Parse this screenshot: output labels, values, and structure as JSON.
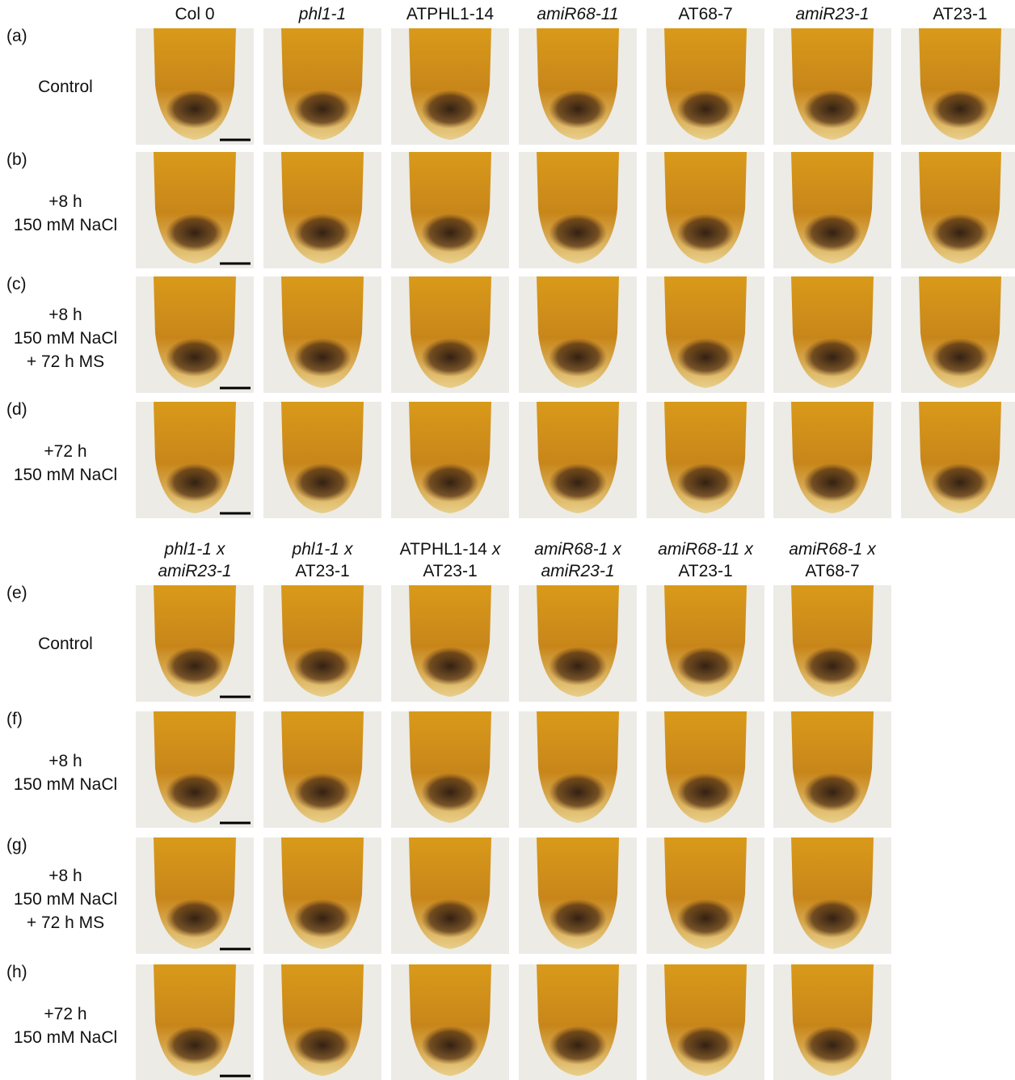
{
  "figure": {
    "top": {
      "columns": [
        [
          [
            {
              "text": "Col 0",
              "italic": false
            }
          ]
        ],
        [
          [
            {
              "text": "phl1-1",
              "italic": true
            }
          ]
        ],
        [
          [
            {
              "text": "ATPHL1-14",
              "italic": false
            }
          ]
        ],
        [
          [
            {
              "text": "amiR68-11",
              "italic": true
            }
          ]
        ],
        [
          [
            {
              "text": "AT68-7",
              "italic": false
            }
          ]
        ],
        [
          [
            {
              "text": "amiR23-1",
              "italic": true
            }
          ]
        ],
        [
          [
            {
              "text": "AT23-1",
              "italic": false
            }
          ]
        ]
      ],
      "rows": [
        {
          "label": "(a)",
          "lines": [
            "Control"
          ]
        },
        {
          "label": "(b)",
          "lines": [
            "+8 h",
            "150 mM NaCl"
          ]
        },
        {
          "label": "(c)",
          "lines": [
            "+8 h",
            "150 mM NaCl",
            "+ 72 h MS"
          ]
        },
        {
          "label": "(d)",
          "lines": [
            "+72 h",
            "150 mM NaCl"
          ]
        }
      ]
    },
    "bottom": {
      "columns": [
        [
          [
            {
              "text": "phl1-1",
              "italic": true
            },
            {
              "text": "x",
              "italic": true
            }
          ],
          [
            {
              "text": "amiR23-1",
              "italic": true
            }
          ]
        ],
        [
          [
            {
              "text": "phl1-1",
              "italic": true
            },
            {
              "text": "x",
              "italic": true
            }
          ],
          [
            {
              "text": "AT23-1",
              "italic": false
            }
          ]
        ],
        [
          [
            {
              "text": "ATPHL1-14",
              "italic": false
            },
            {
              "text": "x",
              "italic": true
            }
          ],
          [
            {
              "text": "AT23-1",
              "italic": false
            }
          ]
        ],
        [
          [
            {
              "text": "amiR68-1",
              "italic": true
            },
            {
              "text": "x",
              "italic": true
            }
          ],
          [
            {
              "text": "amiR23-1",
              "italic": true
            }
          ]
        ],
        [
          [
            {
              "text": "amiR68-11",
              "italic": true
            },
            {
              "text": "x",
              "italic": true
            }
          ],
          [
            {
              "text": "AT23-1",
              "italic": false
            }
          ]
        ],
        [
          [
            {
              "text": "amiR68-1",
              "italic": true
            },
            {
              "text": "x",
              "italic": true
            }
          ],
          [
            {
              "text": "AT68-7",
              "italic": false
            }
          ]
        ]
      ],
      "rows": [
        {
          "label": "(e)",
          "lines": [
            "Control"
          ]
        },
        {
          "label": "(f)",
          "lines": [
            "+8 h",
            "150 mM NaCl"
          ]
        },
        {
          "label": "(g)",
          "lines": [
            "+8 h",
            "150 mM NaCl",
            "+ 72 h MS"
          ]
        },
        {
          "label": "(h)",
          "lines": [
            "+72 h",
            "150 mM NaCl"
          ]
        }
      ]
    }
  }
}
